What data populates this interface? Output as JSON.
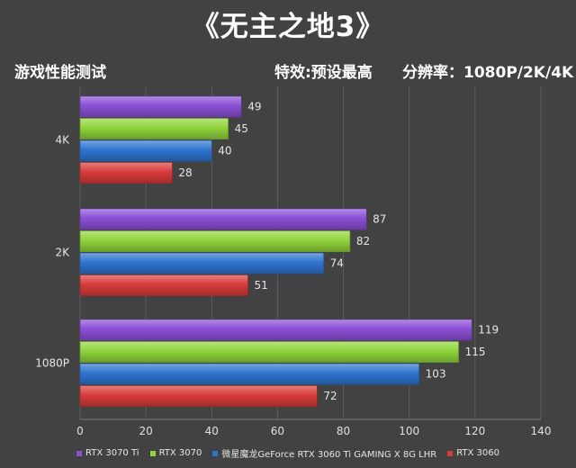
{
  "header": {
    "title": "《无主之地3》",
    "left_label": "游戏性能测试",
    "settings_label": "特效:预设最高",
    "resolution_label": "分辨率：1080P/2K/4K"
  },
  "chart_data": {
    "type": "bar",
    "orientation": "horizontal",
    "categories": [
      "4K",
      "2K",
      "1080P"
    ],
    "series": [
      {
        "name": "RTX 3070 Ti",
        "color": "#8b4fd6",
        "values": [
          49,
          87,
          119
        ]
      },
      {
        "name": "RTX 3070",
        "color": "#8fd43a",
        "values": [
          45,
          82,
          115
        ]
      },
      {
        "name": "微星魔龙GeForce RTX 3060 Ti GAMING X 8G LHR",
        "color": "#2f74d0",
        "values": [
          40,
          74,
          103
        ]
      },
      {
        "name": "RTX 3060",
        "color": "#d93b3b",
        "values": [
          28,
          51,
          72
        ]
      }
    ],
    "xlim": [
      0,
      140
    ],
    "x_ticks": [
      0,
      20,
      40,
      60,
      80,
      100,
      120,
      140
    ],
    "grid": true,
    "legend_position": "bottom"
  }
}
